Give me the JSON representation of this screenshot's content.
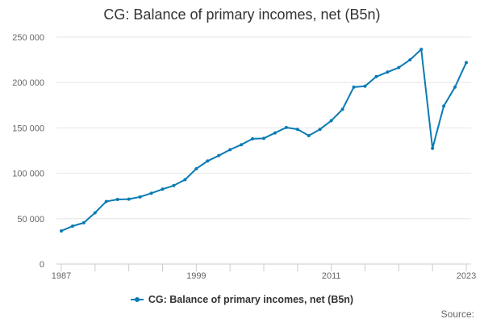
{
  "chart_data": {
    "type": "line",
    "title": "CG: Balance of primary incomes, net (B5n)",
    "xlabel": "",
    "ylabel": "",
    "x": [
      1987,
      1988,
      1989,
      1990,
      1991,
      1992,
      1993,
      1994,
      1995,
      1996,
      1997,
      1998,
      1999,
      2000,
      2001,
      2002,
      2003,
      2004,
      2005,
      2006,
      2007,
      2008,
      2009,
      2010,
      2011,
      2012,
      2013,
      2014,
      2015,
      2016,
      2017,
      2018,
      2019,
      2020,
      2021,
      2022,
      2023
    ],
    "x_tick_labels": [
      "1987",
      "1999",
      "2011",
      "2023"
    ],
    "y_tick_labels": [
      "0",
      "50 000",
      "100 000",
      "150 000",
      "200 000",
      "250 000"
    ],
    "ylim": [
      0,
      250000
    ],
    "xlim": [
      1987,
      2023
    ],
    "series": [
      {
        "name": "CG: Balance of primary incomes, net (B5n)",
        "color": "#0a7bb5",
        "values": [
          36500,
          41800,
          45500,
          56500,
          69000,
          71200,
          71500,
          74000,
          78000,
          82500,
          86500,
          93000,
          105000,
          113500,
          119500,
          126000,
          131500,
          138000,
          138500,
          144500,
          150500,
          148500,
          141500,
          148500,
          158000,
          170500,
          195000,
          196000,
          206500,
          211500,
          216500,
          225000,
          236500,
          127500,
          174000,
          195000,
          222000
        ]
      }
    ],
    "grid": true,
    "legend_position": "bottom-center"
  },
  "credits": "Source:"
}
